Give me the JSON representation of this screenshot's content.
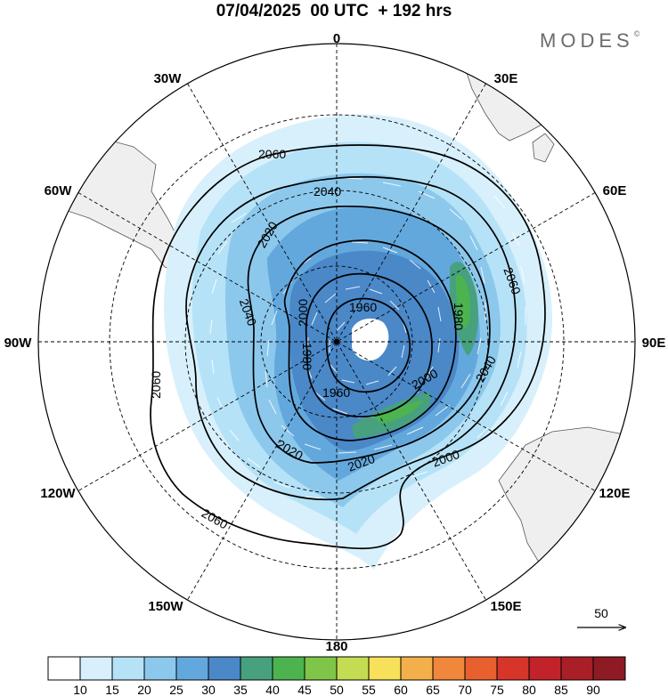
{
  "title": "07/04/2025  00 UTC  + 192 hrs",
  "logo": "MODES",
  "logo_mark": "©",
  "longitude_labels": [
    {
      "text": "0",
      "lon": 0
    },
    {
      "text": "30E",
      "lon": 30
    },
    {
      "text": "60E",
      "lon": 60
    },
    {
      "text": "90E",
      "lon": 90
    },
    {
      "text": "120E",
      "lon": 120
    },
    {
      "text": "150E",
      "lon": 150
    },
    {
      "text": "180",
      "lon": 180
    },
    {
      "text": "150W",
      "lon": -150
    },
    {
      "text": "120W",
      "lon": -120
    },
    {
      "text": "90W",
      "lon": -90
    },
    {
      "text": "60W",
      "lon": -60
    },
    {
      "text": "30W",
      "lon": -30
    }
  ],
  "contour_labels": [
    "2060",
    "2040",
    "2020",
    "2000",
    "1980",
    "1960",
    "2060",
    "2040",
    "2020",
    "2000",
    "1980",
    "1960",
    "2060",
    "2040",
    "2020",
    "2000",
    "2060",
    "2040",
    "2020",
    "2060"
  ],
  "wind_reference": {
    "label": "50"
  },
  "colorbar": {
    "ticks": [
      "10",
      "15",
      "20",
      "25",
      "30",
      "35",
      "40",
      "45",
      "50",
      "55",
      "60",
      "65",
      "70",
      "75",
      "80",
      "85",
      "90"
    ],
    "colors": [
      "#ffffff",
      "#d8f0fb",
      "#b6e2f7",
      "#8cc8ec",
      "#63a8dd",
      "#4a88c8",
      "#47a17e",
      "#4db34f",
      "#7fc54a",
      "#c4dc52",
      "#f7e05a",
      "#f3b04a",
      "#f0873b",
      "#e9602f",
      "#d8352a",
      "#c2232a",
      "#a91f28",
      "#8e1a23"
    ]
  },
  "colors": {
    "land": "#efefef",
    "coast": "#555555",
    "graticule": "#000000"
  }
}
